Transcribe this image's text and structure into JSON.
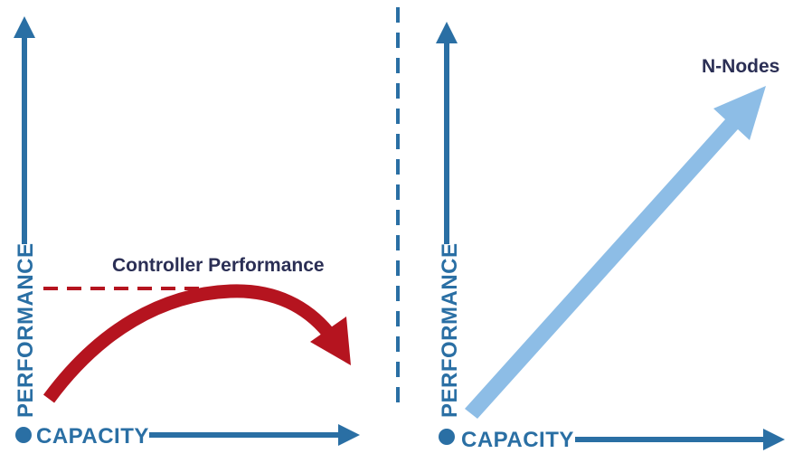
{
  "colors": {
    "axis": "#2a6fa4",
    "controller_curve": "#b5141f",
    "nodes_arrow": "#8dbde6",
    "divider": "#2a6fa4",
    "label_text": "#2b2f55"
  },
  "left_panel": {
    "y_axis_label": "PERFORMANCE",
    "x_axis_label": "CAPACITY",
    "curve_label": "Controller Performance",
    "curve_shape": "rises then falls (arch)",
    "limit_line": "dashed horizontal at peak"
  },
  "right_panel": {
    "y_axis_label": "PERFORMANCE",
    "x_axis_label": "CAPACITY",
    "arrow_label": "N-Nodes",
    "arrow_shape": "straight diagonal rising"
  }
}
